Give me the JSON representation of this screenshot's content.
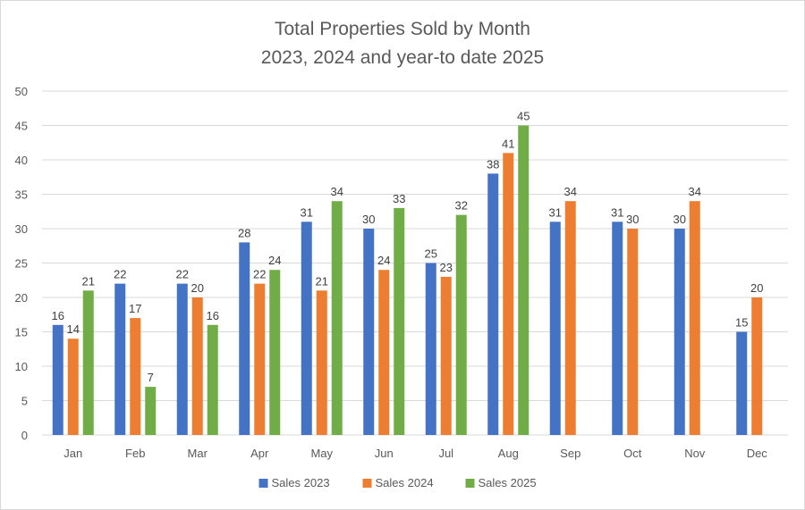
{
  "chart_data": {
    "type": "bar",
    "title": "Total Properties Sold by Month",
    "subtitle": "2023, 2024 and year-to date 2025",
    "xlabel": "",
    "ylabel": "",
    "ylim": [
      0,
      50
    ],
    "yticks": [
      0,
      5,
      10,
      15,
      20,
      25,
      30,
      35,
      40,
      45,
      50
    ],
    "grid": true,
    "legend_position": "bottom",
    "categories": [
      "Jan",
      "Feb",
      "Mar",
      "Apr",
      "May",
      "Jun",
      "Jul",
      "Aug",
      "Sep",
      "Oct",
      "Nov",
      "Dec"
    ],
    "series": [
      {
        "name": "Sales 2023",
        "color": "#4472c4",
        "values": [
          16,
          22,
          22,
          28,
          31,
          30,
          25,
          38,
          31,
          31,
          30,
          15
        ]
      },
      {
        "name": "Sales 2024",
        "color": "#ed7d31",
        "values": [
          14,
          17,
          20,
          22,
          21,
          24,
          23,
          41,
          34,
          30,
          34,
          20
        ]
      },
      {
        "name": "Sales 2025",
        "color": "#70ad47",
        "values": [
          21,
          7,
          16,
          24,
          34,
          33,
          32,
          45,
          null,
          null,
          null,
          null
        ]
      }
    ]
  }
}
